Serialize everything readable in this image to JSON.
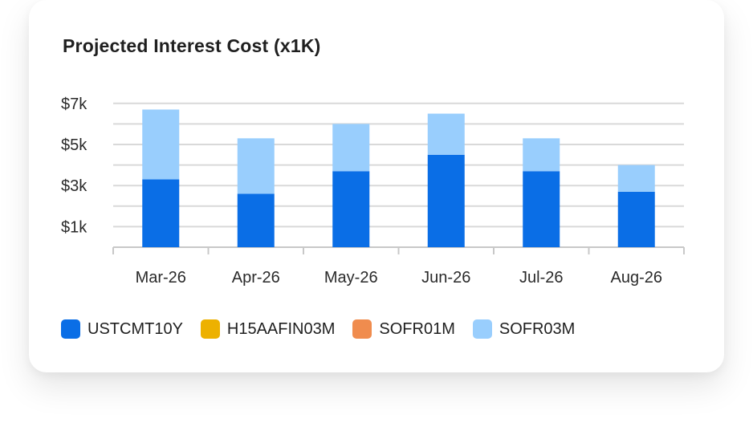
{
  "card": {
    "title": "Projected Interest Cost (x1K)"
  },
  "colors": {
    "USTCMT10Y": "#0A6EE6",
    "H15AAFIN03M": "#EDB100",
    "SOFR01M": "#F08C4E",
    "SOFR03M": "#99CEFD",
    "grid": "#d9d9d9",
    "axis": "#c8c8c8"
  },
  "chart_data": {
    "type": "bar",
    "stacked": true,
    "title": "Projected Interest Cost (x1K)",
    "categories": [
      "Mar-26",
      "Apr-26",
      "May-26",
      "Jun-26",
      "Jul-26",
      "Aug-26"
    ],
    "series": [
      {
        "name": "USTCMT10Y",
        "values": [
          3.3,
          2.6,
          3.7,
          4.5,
          3.7,
          2.7
        ]
      },
      {
        "name": "H15AAFIN03M",
        "values": [
          0,
          0,
          0,
          0,
          0,
          0
        ]
      },
      {
        "name": "SOFR01M",
        "values": [
          0,
          0,
          0,
          0,
          0,
          0
        ]
      },
      {
        "name": "SOFR03M",
        "values": [
          3.4,
          2.7,
          2.3,
          2.0,
          1.6,
          1.3
        ]
      }
    ],
    "yticks": [
      {
        "value": 1,
        "label": "$1k"
      },
      {
        "value": 3,
        "label": "$3k"
      },
      {
        "value": 5,
        "label": "$5k"
      },
      {
        "value": 7,
        "label": "$7k"
      }
    ],
    "ylim": [
      0,
      7
    ],
    "grid_step": 1,
    "xlabel": "",
    "ylabel": "",
    "legend_position": "bottom-left"
  },
  "legend": [
    {
      "label": "USTCMT10Y",
      "color": "#0A6EE6"
    },
    {
      "label": "H15AAFIN03M",
      "color": "#EDB100"
    },
    {
      "label": "SOFR01M",
      "color": "#F08C4E"
    },
    {
      "label": "SOFR03M",
      "color": "#99CEFD"
    }
  ]
}
